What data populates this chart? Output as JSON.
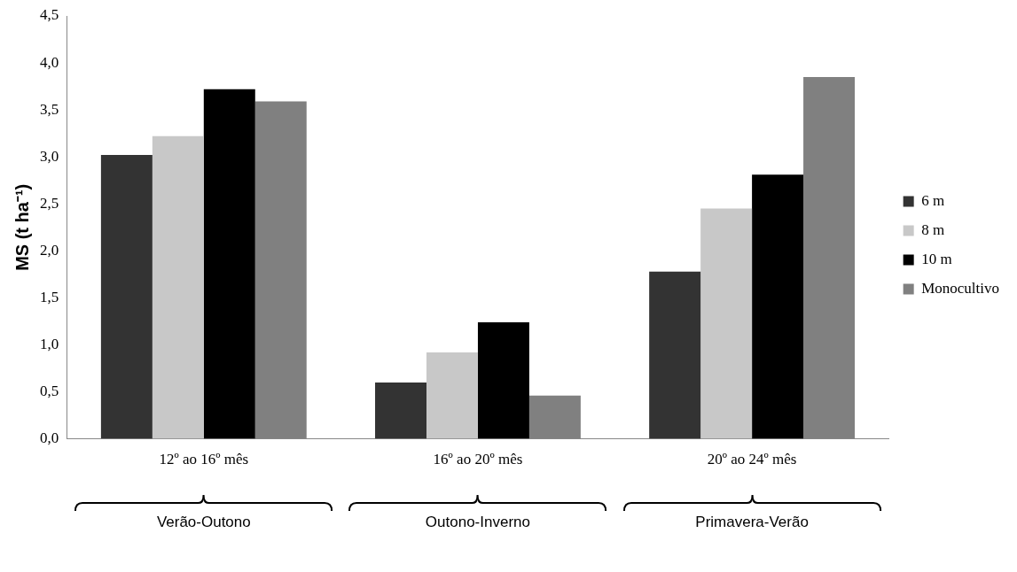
{
  "chart_data": {
    "type": "bar",
    "ylabel": "MS (t ha⁻¹)",
    "categories": [
      "12º ao 16º mês",
      "16º ao 20º mês",
      "20º ao 24º mês"
    ],
    "series": [
      {
        "name": "6 m",
        "color": "#333333",
        "values": [
          3.02,
          0.6,
          1.78
        ]
      },
      {
        "name": "8 m",
        "color": "#c8c8c8",
        "values": [
          3.22,
          0.92,
          2.45
        ]
      },
      {
        "name": "10 m",
        "color": "#000000",
        "values": [
          3.72,
          1.24,
          2.81
        ]
      },
      {
        "name": "Monocultivo",
        "color": "#808080",
        "values": [
          3.59,
          0.46,
          3.85
        ]
      }
    ],
    "ylim": [
      0,
      4.5
    ],
    "yticks": [
      {
        "value": 0,
        "label": "0,0"
      },
      {
        "value": 0.5,
        "label": "0,5"
      },
      {
        "value": 1,
        "label": "1,0"
      },
      {
        "value": 1.5,
        "label": "1,5"
      },
      {
        "value": 2,
        "label": "2,0"
      },
      {
        "value": 2.5,
        "label": "2,5"
      },
      {
        "value": 3,
        "label": "3,0"
      },
      {
        "value": 3.5,
        "label": "3,5"
      },
      {
        "value": 4,
        "label": "4,0"
      },
      {
        "value": 4.5,
        "label": "4,5"
      }
    ],
    "grid": false,
    "legend": "right",
    "annotations": [
      "Verão-Outono",
      "Outono-Inverno",
      "Primavera-Verão"
    ]
  }
}
